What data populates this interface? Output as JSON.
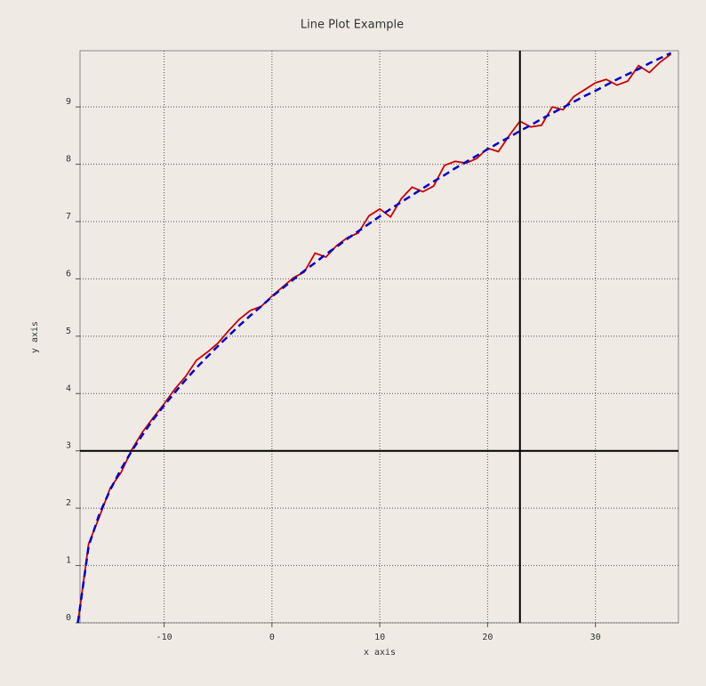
{
  "chart_data": {
    "type": "line",
    "title": "Line Plot Example",
    "x_label": "x axis",
    "y_label": "y axis",
    "x": [
      -18,
      -17,
      -16,
      -15,
      -14,
      -13,
      -12,
      -11,
      -10,
      -9,
      -8,
      -7,
      -6,
      -5,
      -4,
      -3,
      -2,
      -1,
      0,
      1,
      2,
      3,
      4,
      5,
      6,
      7,
      8,
      9,
      10,
      11,
      12,
      13,
      14,
      15,
      16,
      17,
      18,
      19,
      20,
      21,
      22,
      23,
      24,
      25,
      26,
      27,
      28,
      29,
      30,
      31,
      32,
      33,
      34,
      35,
      36,
      37
    ],
    "series": [
      {
        "color": "#cc0000",
        "dash": false,
        "values": [
          0,
          1.38,
          1.85,
          2.35,
          2.62,
          3.02,
          3.33,
          3.58,
          3.82,
          4.08,
          4.3,
          4.58,
          4.72,
          4.88,
          5.1,
          5.3,
          5.45,
          5.52,
          5.7,
          5.86,
          6.02,
          6.12,
          6.45,
          6.38,
          6.58,
          6.72,
          6.8,
          7.1,
          7.22,
          7.08,
          7.4,
          7.6,
          7.52,
          7.62,
          7.98,
          8.05,
          8.02,
          8.1,
          8.28,
          8.22,
          8.5,
          8.75,
          8.65,
          8.68,
          9.0,
          8.95,
          9.18,
          9.3,
          9.42,
          9.48,
          9.38,
          9.45,
          9.72,
          9.6,
          9.78,
          9.92
        ]
      },
      {
        "color": "#0000cc",
        "dash": true,
        "values": [
          0,
          1.34,
          1.9,
          2.32,
          2.68,
          3.0,
          3.28,
          3.55,
          3.79,
          4.02,
          4.24,
          4.45,
          4.64,
          4.83,
          5.01,
          5.19,
          5.36,
          5.52,
          5.69,
          5.84,
          5.99,
          6.14,
          6.28,
          6.43,
          6.56,
          6.7,
          6.83,
          6.96,
          7.09,
          7.22,
          7.34,
          7.46,
          7.58,
          7.7,
          7.81,
          7.93,
          8.04,
          8.15,
          8.26,
          8.37,
          8.47,
          8.58,
          8.68,
          8.79,
          8.89,
          8.99,
          9.09,
          9.19,
          9.28,
          9.38,
          9.48,
          9.57,
          9.66,
          9.76,
          9.85,
          9.94
        ]
      }
    ],
    "xlim": [
      -17.8,
      37.7
    ],
    "ylim": [
      0,
      9.98
    ],
    "xticks": [
      -10,
      0,
      10,
      20,
      30
    ],
    "yticks": [
      0,
      1,
      2,
      3,
      4,
      5,
      6,
      7,
      8,
      9
    ],
    "grid": true,
    "crosshair": {
      "x": 23,
      "y": 3
    }
  }
}
